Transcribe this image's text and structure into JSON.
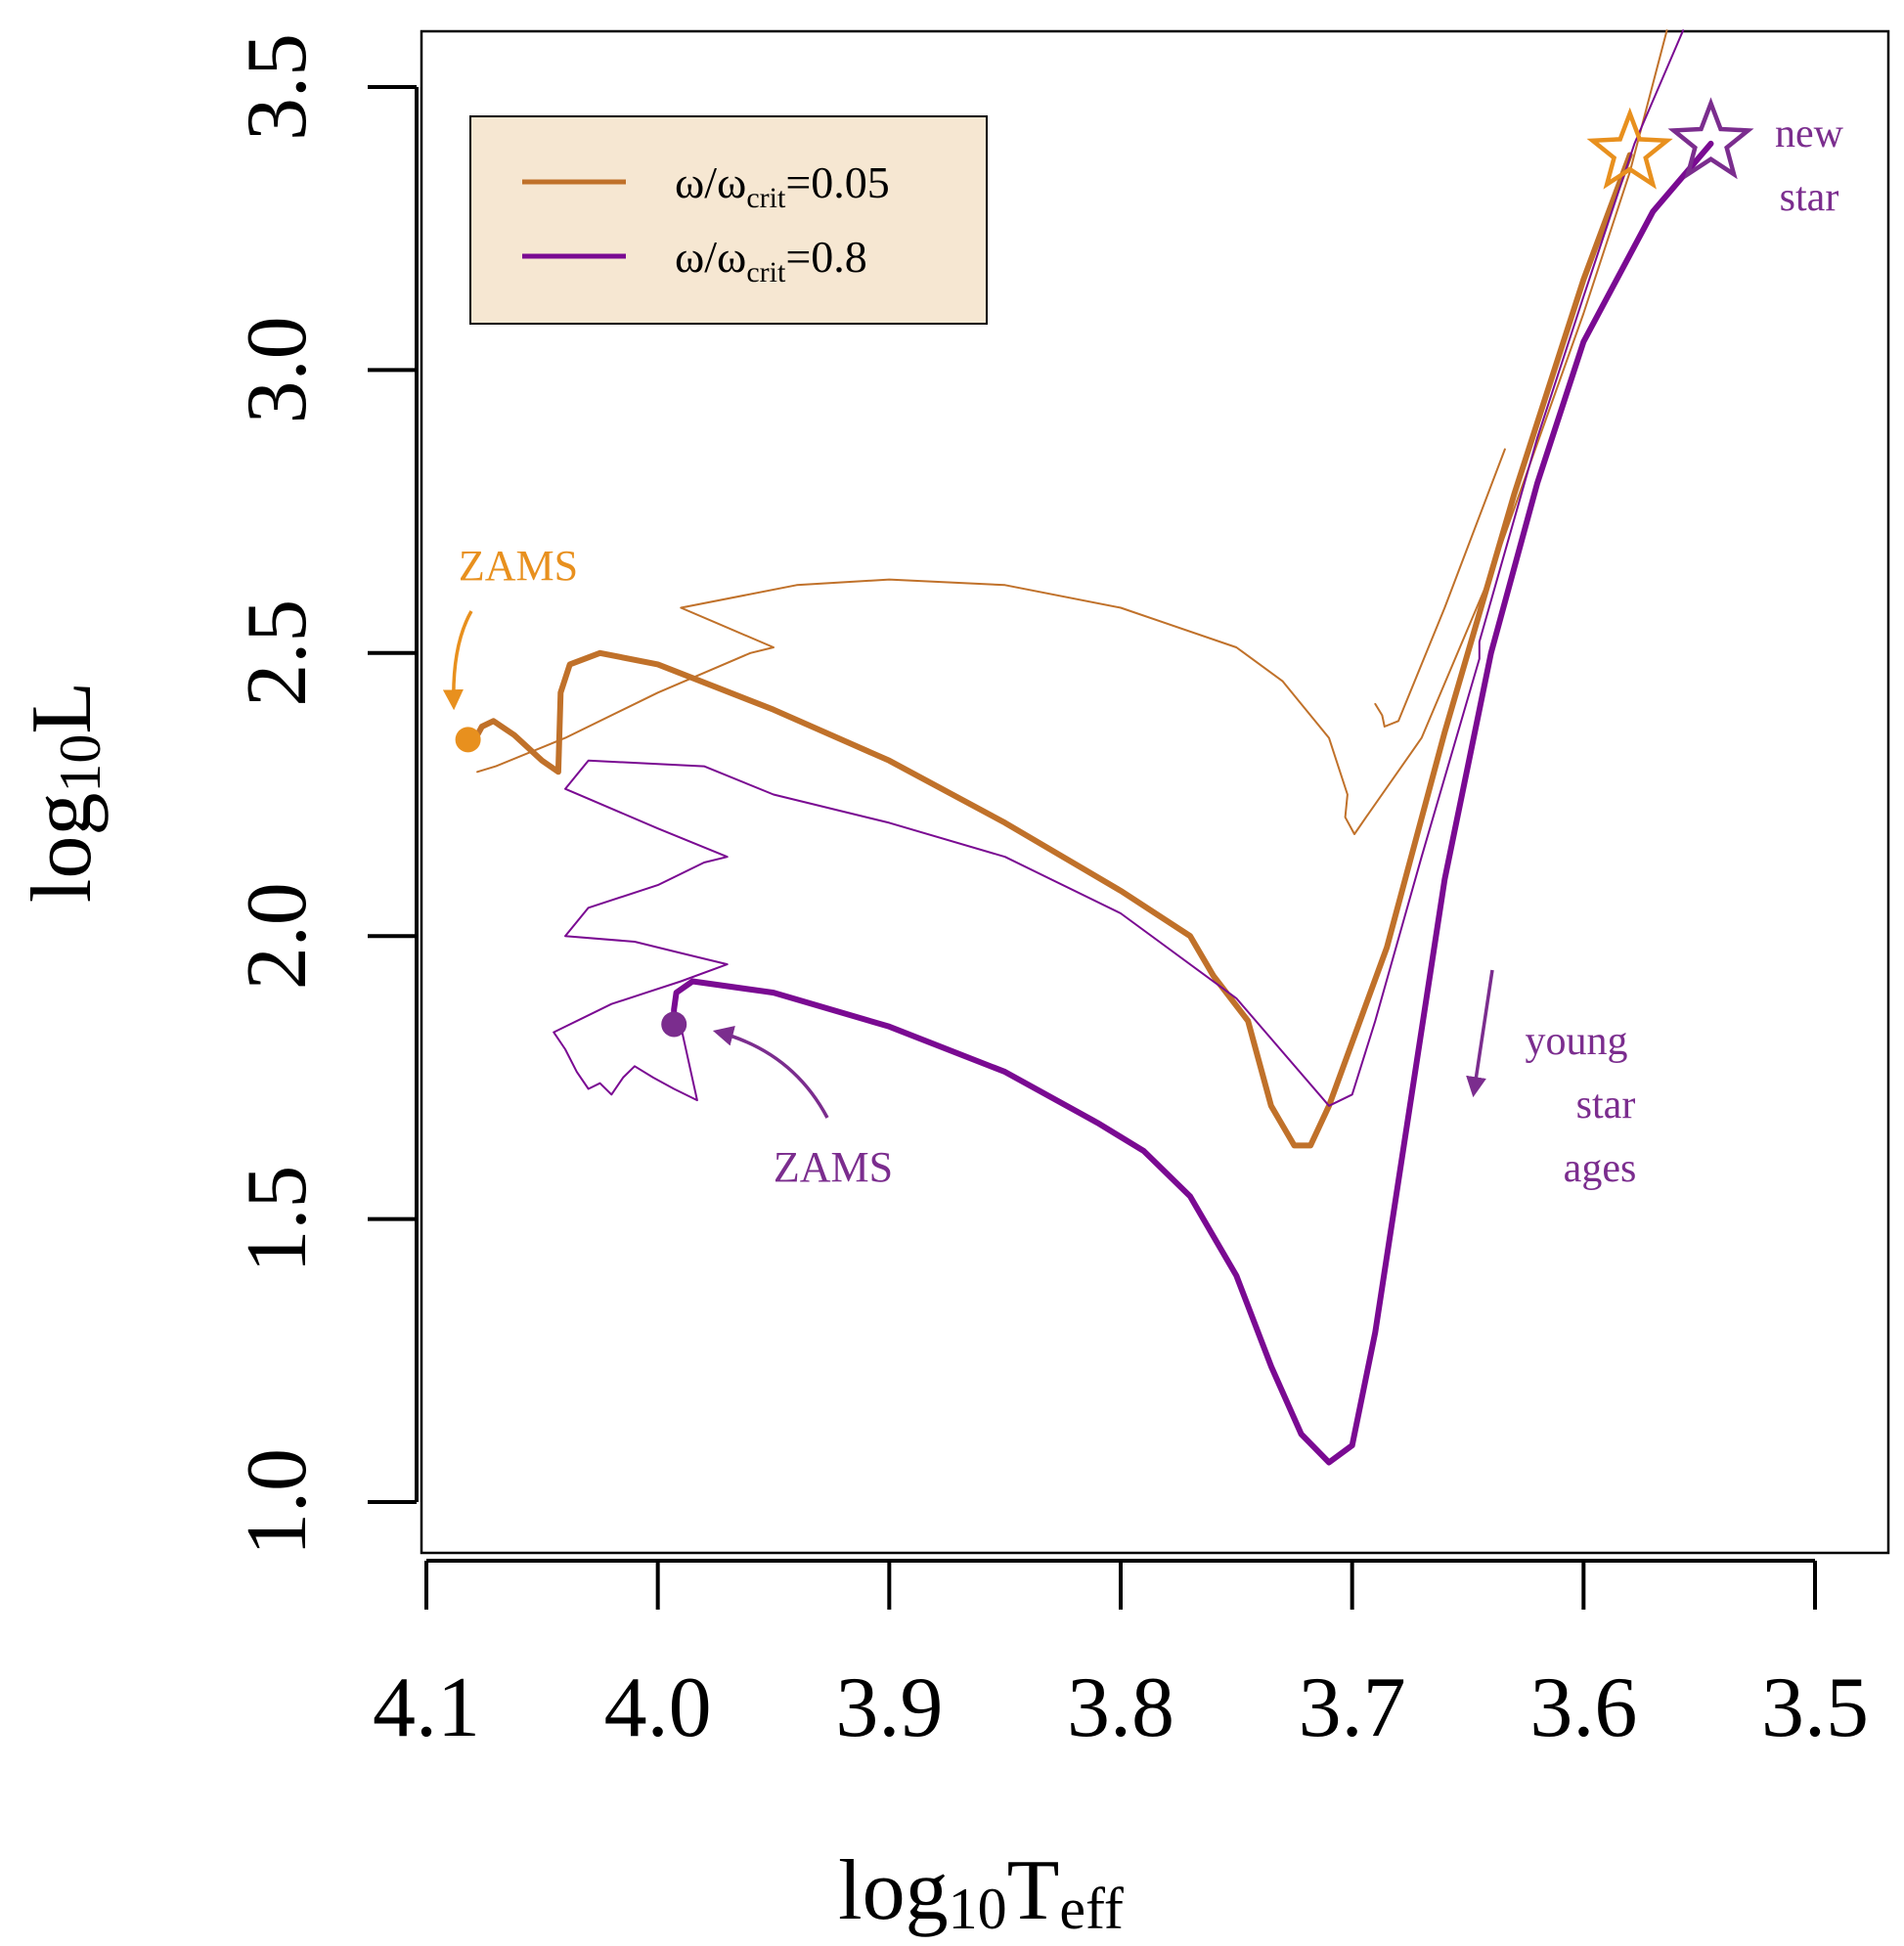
{
  "chart_data": {
    "type": "line",
    "xlabel": {
      "base": "log",
      "sub": "10",
      "tail": "T",
      "tail_sub": "eff"
    },
    "ylabel": {
      "base": "log",
      "sub": "10",
      "tail": "L"
    },
    "xlim": [
      4.1,
      3.5
    ],
    "ylim": [
      1.0,
      3.5
    ],
    "x_reversed": true,
    "x_ticks": [
      4.1,
      4.0,
      3.9,
      3.8,
      3.7,
      3.6,
      3.5
    ],
    "x_tick_labels": [
      "4.1",
      "4.0",
      "3.9",
      "3.8",
      "3.7",
      "3.6",
      "3.5"
    ],
    "y_ticks": [
      1.0,
      1.5,
      2.0,
      2.5,
      3.0,
      3.5
    ],
    "y_tick_labels": [
      "1.0",
      "1.5",
      "2.0",
      "2.5",
      "3.0",
      "3.5"
    ],
    "colors": {
      "orange_line": "#c0712a",
      "purple_line": "#7a0a92",
      "zams_orange": "#e8901e",
      "zams_purple": "#7b2d8e",
      "legend_bg": "#f6e7d2"
    },
    "legend": [
      {
        "name": "ω/ω",
        "sub": "crit",
        "value": "=0.05",
        "color": "#c0712a"
      },
      {
        "name": "ω/ω",
        "sub": "crit",
        "value": "=0.8",
        "color": "#7a0a92"
      }
    ],
    "annotations": {
      "zams_orange": "ZAMS",
      "zams_purple": "ZAMS",
      "new_star_1": "new",
      "new_star_2": "star",
      "young_1": "young",
      "young_2": "star",
      "young_3": "ages"
    },
    "zams_points": [
      {
        "name": "orange",
        "x": 4.082,
        "y": 2.347
      },
      {
        "name": "purple",
        "x": 3.993,
        "y": 1.844
      }
    ],
    "new_star_points": [
      {
        "name": "orange",
        "x": 3.58,
        "y": 3.384
      },
      {
        "name": "purple",
        "x": 3.545,
        "y": 3.402
      }
    ],
    "series": [
      {
        "name": "omega_0.05_thick",
        "color": "#c0712a",
        "width": 6,
        "points": [
          [
            4.08,
            2.34
          ],
          [
            4.076,
            2.37
          ],
          [
            4.071,
            2.38
          ],
          [
            4.062,
            2.355
          ],
          [
            4.05,
            2.31
          ],
          [
            4.043,
            2.29
          ],
          [
            4.042,
            2.43
          ],
          [
            4.038,
            2.48
          ],
          [
            4.025,
            2.5
          ],
          [
            4.0,
            2.48
          ],
          [
            3.95,
            2.4
          ],
          [
            3.9,
            2.31
          ],
          [
            3.85,
            2.2
          ],
          [
            3.8,
            2.08
          ],
          [
            3.77,
            2.0
          ],
          [
            3.76,
            1.93
          ],
          [
            3.745,
            1.85
          ],
          [
            3.741,
            1.79
          ],
          [
            3.735,
            1.7
          ],
          [
            3.725,
            1.63
          ],
          [
            3.718,
            1.63
          ],
          [
            3.71,
            1.7
          ],
          [
            3.685,
            1.98
          ],
          [
            3.66,
            2.36
          ],
          [
            3.63,
            2.78
          ],
          [
            3.6,
            3.16
          ],
          [
            3.58,
            3.38
          ]
        ]
      },
      {
        "name": "omega_0.05_thin",
        "color": "#c0712a",
        "width": 2,
        "points": [
          [
            4.078,
            2.29
          ],
          [
            4.07,
            2.3
          ],
          [
            4.04,
            2.35
          ],
          [
            4.0,
            2.43
          ],
          [
            3.96,
            2.5
          ],
          [
            3.95,
            2.51
          ],
          [
            3.99,
            2.58
          ],
          [
            3.94,
            2.62
          ],
          [
            3.9,
            2.63
          ],
          [
            3.85,
            2.62
          ],
          [
            3.8,
            2.58
          ],
          [
            3.75,
            2.51
          ],
          [
            3.73,
            2.45
          ],
          [
            3.71,
            2.35
          ],
          [
            3.702,
            2.25
          ],
          [
            3.703,
            2.21
          ],
          [
            3.699,
            2.18
          ],
          [
            3.694,
            2.21
          ],
          [
            3.67,
            2.35
          ],
          [
            3.64,
            2.64
          ],
          [
            3.62,
            2.87
          ],
          [
            3.6,
            3.1
          ],
          [
            3.58,
            3.35
          ],
          [
            3.564,
            3.6
          ]
        ]
      },
      {
        "name": "omega_0.05_thin_branch",
        "color": "#c0712a",
        "width": 2,
        "points": [
          [
            3.69,
            2.41
          ],
          [
            3.687,
            2.39
          ],
          [
            3.686,
            2.37
          ],
          [
            3.68,
            2.38
          ],
          [
            3.66,
            2.58
          ],
          [
            3.634,
            2.86
          ]
        ]
      },
      {
        "name": "omega_0.8_thick",
        "color": "#7a0a92",
        "width": 6,
        "points": [
          [
            3.993,
            1.84
          ],
          [
            3.993,
            1.87
          ],
          [
            3.992,
            1.9
          ],
          [
            3.985,
            1.92
          ],
          [
            3.95,
            1.9
          ],
          [
            3.9,
            1.84
          ],
          [
            3.85,
            1.76
          ],
          [
            3.81,
            1.67
          ],
          [
            3.79,
            1.62
          ],
          [
            3.77,
            1.54
          ],
          [
            3.75,
            1.4
          ],
          [
            3.735,
            1.24
          ],
          [
            3.722,
            1.12
          ],
          [
            3.71,
            1.07
          ],
          [
            3.7,
            1.1
          ],
          [
            3.69,
            1.3
          ],
          [
            3.675,
            1.7
          ],
          [
            3.66,
            2.1
          ],
          [
            3.64,
            2.5
          ],
          [
            3.62,
            2.8
          ],
          [
            3.6,
            3.05
          ],
          [
            3.57,
            3.28
          ],
          [
            3.545,
            3.4
          ]
        ]
      },
      {
        "name": "omega_0.8_thin",
        "color": "#7a0a92",
        "width": 2,
        "points": [
          [
            3.99,
            1.84
          ],
          [
            3.983,
            1.71
          ],
          [
            3.993,
            1.73
          ],
          [
            4.002,
            1.75
          ],
          [
            4.01,
            1.77
          ],
          [
            4.015,
            1.75
          ],
          [
            4.02,
            1.72
          ],
          [
            4.025,
            1.74
          ],
          [
            4.03,
            1.73
          ],
          [
            4.035,
            1.76
          ],
          [
            4.04,
            1.8
          ],
          [
            4.045,
            1.83
          ],
          [
            4.02,
            1.88
          ],
          [
            3.99,
            1.92
          ],
          [
            3.97,
            1.95
          ],
          [
            3.99,
            1.97
          ],
          [
            4.01,
            1.99
          ],
          [
            4.04,
            2.0
          ],
          [
            4.03,
            2.05
          ],
          [
            4.0,
            2.09
          ],
          [
            3.98,
            2.13
          ],
          [
            3.97,
            2.14
          ],
          [
            4.0,
            2.19
          ],
          [
            4.04,
            2.26
          ],
          [
            4.03,
            2.31
          ],
          [
            3.98,
            2.3
          ],
          [
            3.95,
            2.25
          ],
          [
            3.9,
            2.2
          ],
          [
            3.85,
            2.14
          ],
          [
            3.8,
            2.04
          ],
          [
            3.75,
            1.89
          ],
          [
            3.71,
            1.7
          ],
          [
            3.7,
            1.72
          ],
          [
            3.69,
            1.85
          ],
          [
            3.67,
            2.14
          ],
          [
            3.645,
            2.49
          ],
          [
            3.645,
            2.52
          ],
          [
            3.62,
            2.88
          ],
          [
            3.6,
            3.13
          ],
          [
            3.578,
            3.4
          ],
          [
            3.557,
            3.6
          ]
        ]
      }
    ]
  }
}
